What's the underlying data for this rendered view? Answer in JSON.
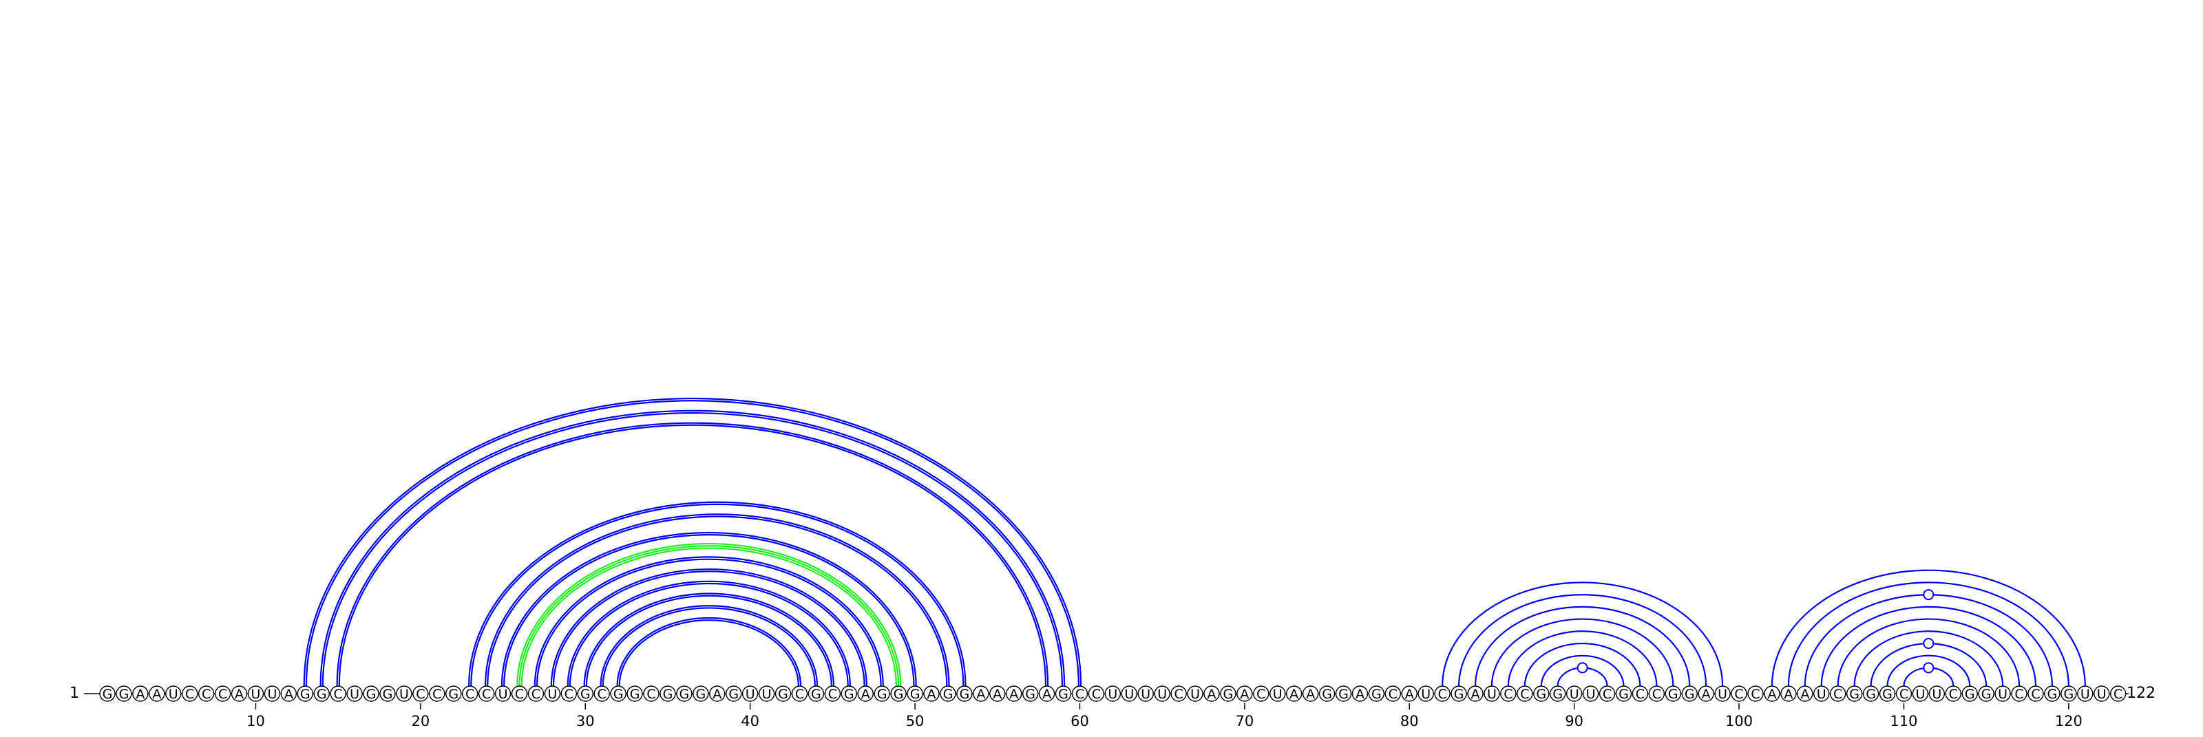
{
  "sequence": "GGAAUCCCAUUAGGCUGGUCCGCCUCCUCGCGGCGGGAGUUGCGCGAGGGAGGAAAGAGCCUUUUCUAGACUAAGGAGCAUCGAUCCGGUUCGCCGGAUCCAAAUCGGGCUUCGGUCCGGUUC",
  "start_label": "1",
  "end_label": "122",
  "ticks": [
    "10",
    "20",
    "30",
    "40",
    "50",
    "60",
    "70",
    "80",
    "90",
    "100",
    "110",
    "120"
  ],
  "colors": {
    "arc_default": "#0000ee",
    "arc_highlight": "#22ee22",
    "nucleotide_stroke": "#000000",
    "text": "#000000"
  },
  "chart_data": {
    "type": "arc_diagram",
    "length": 122,
    "pairs": [
      {
        "i": 13,
        "j": 60,
        "lines": 2
      },
      {
        "i": 14,
        "j": 59,
        "lines": 2
      },
      {
        "i": 15,
        "j": 58,
        "lines": 2
      },
      {
        "i": 23,
        "j": 53,
        "lines": 2
      },
      {
        "i": 24,
        "j": 52,
        "lines": 2
      },
      {
        "i": 25,
        "j": 50,
        "lines": 2
      },
      {
        "i": 26,
        "j": 49,
        "lines": 3,
        "highlight": true
      },
      {
        "i": 27,
        "j": 48,
        "lines": 2
      },
      {
        "i": 28,
        "j": 47,
        "lines": 2
      },
      {
        "i": 29,
        "j": 46,
        "lines": 2
      },
      {
        "i": 30,
        "j": 45,
        "lines": 2
      },
      {
        "i": 31,
        "j": 44,
        "lines": 2
      },
      {
        "i": 32,
        "j": 43,
        "lines": 2
      },
      {
        "i": 82,
        "j": 99,
        "lines": 1
      },
      {
        "i": 83,
        "j": 98,
        "lines": 1
      },
      {
        "i": 84,
        "j": 97,
        "lines": 1
      },
      {
        "i": 85,
        "j": 96,
        "lines": 1
      },
      {
        "i": 86,
        "j": 95,
        "lines": 1
      },
      {
        "i": 87,
        "j": 94,
        "lines": 1
      },
      {
        "i": 88,
        "j": 93,
        "lines": 1
      },
      {
        "i": 89,
        "j": 92,
        "lines": 1
      },
      {
        "i": 102,
        "j": 121,
        "lines": 1
      },
      {
        "i": 103,
        "j": 120,
        "lines": 1
      },
      {
        "i": 104,
        "j": 119,
        "lines": 1
      },
      {
        "i": 105,
        "j": 118,
        "lines": 1
      },
      {
        "i": 106,
        "j": 117,
        "lines": 1
      },
      {
        "i": 107,
        "j": 116,
        "lines": 1
      },
      {
        "i": 108,
        "j": 115,
        "lines": 1
      },
      {
        "i": 109,
        "j": 114,
        "lines": 1
      },
      {
        "i": 110,
        "j": 113,
        "lines": 1
      }
    ],
    "circle_markers": [
      {
        "pair_i": 89,
        "pair_j": 92
      },
      {
        "pair_i": 104,
        "pair_j": 119
      },
      {
        "pair_i": 108,
        "pair_j": 115
      },
      {
        "pair_i": 110,
        "pair_j": 113
      }
    ]
  }
}
